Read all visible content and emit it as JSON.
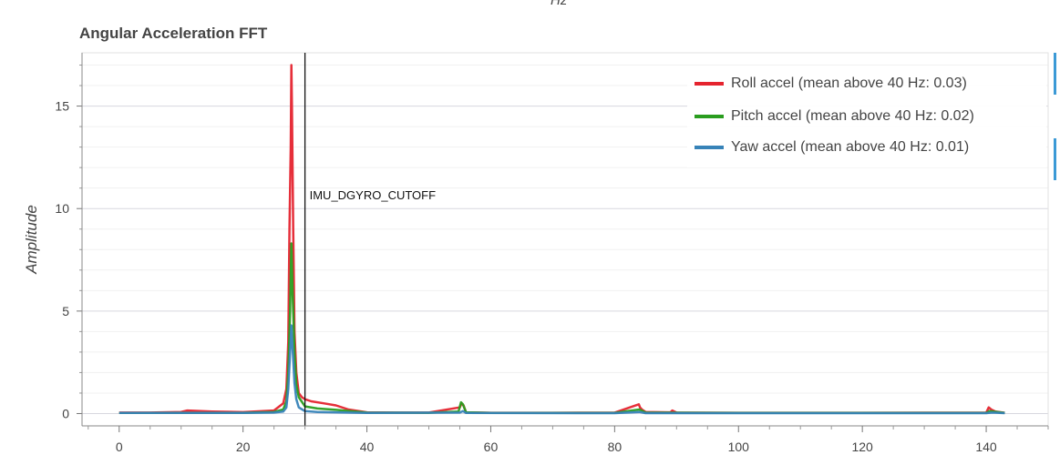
{
  "header": {
    "top_unit": "Hz"
  },
  "chart_data": {
    "type": "line",
    "title": "Angular Acceleration FFT",
    "xlabel": "",
    "ylabel": "Amplitude",
    "xlim": [
      -6,
      150
    ],
    "ylim": [
      -0.6,
      17.6
    ],
    "xticks": [
      0,
      20,
      40,
      60,
      80,
      100,
      120,
      140
    ],
    "yticks": [
      0,
      5,
      10,
      15
    ],
    "grid": true,
    "legend_position": "top-right",
    "annotations": [
      {
        "type": "vline",
        "x": 30,
        "label": "IMU_DGYRO_CUTOFF"
      }
    ],
    "series": [
      {
        "name": "Roll accel (mean above 40 Hz: 0.03)",
        "color": "#e5242f",
        "x": [
          0,
          5,
          10,
          11,
          15,
          20,
          25,
          26.5,
          27,
          27.3,
          27.5,
          27.7,
          27.8,
          27.9,
          28.1,
          28.3,
          28.6,
          29,
          29.5,
          30,
          31,
          33,
          35,
          37,
          40,
          45,
          50,
          55,
          55.3,
          55.6,
          56,
          60,
          70,
          80,
          83.9,
          84.1,
          84.4,
          85,
          89,
          89.3,
          90,
          100,
          120,
          140,
          140.4,
          140.8,
          141.5,
          143
        ],
        "y": [
          0.05,
          0.05,
          0.08,
          0.15,
          0.1,
          0.07,
          0.15,
          0.5,
          1.2,
          3.5,
          9.0,
          13.0,
          17.0,
          15.0,
          9.0,
          4.0,
          2.0,
          1.0,
          0.8,
          0.7,
          0.6,
          0.5,
          0.4,
          0.2,
          0.06,
          0.05,
          0.05,
          0.3,
          0.5,
          0.4,
          0.06,
          0.04,
          0.04,
          0.05,
          0.45,
          0.3,
          0.2,
          0.08,
          0.06,
          0.15,
          0.05,
          0.04,
          0.04,
          0.05,
          0.3,
          0.2,
          0.1,
          0.04
        ]
      },
      {
        "name": "Pitch accel (mean above 40 Hz: 0.02)",
        "color": "#2a9d1f",
        "x": [
          0,
          10,
          20,
          25,
          26.5,
          27,
          27.3,
          27.6,
          27.8,
          28,
          28.3,
          28.6,
          29,
          30,
          32,
          35,
          40,
          50,
          54.8,
          55.2,
          55.5,
          56,
          60,
          80,
          84,
          85,
          100,
          120,
          140,
          140.5,
          143
        ],
        "y": [
          0.03,
          0.04,
          0.04,
          0.08,
          0.2,
          0.6,
          2.0,
          5.0,
          8.3,
          6.0,
          3.0,
          1.4,
          0.8,
          0.35,
          0.25,
          0.18,
          0.05,
          0.04,
          0.1,
          0.55,
          0.45,
          0.06,
          0.03,
          0.03,
          0.2,
          0.05,
          0.03,
          0.03,
          0.03,
          0.12,
          0.03
        ]
      },
      {
        "name": "Yaw accel (mean above 40 Hz: 0.01)",
        "color": "#3783b8",
        "x": [
          0,
          10,
          20,
          25,
          26.5,
          27,
          27.3,
          27.6,
          27.8,
          28,
          28.3,
          28.6,
          29,
          30,
          32,
          35,
          40,
          55,
          55.5,
          56,
          80,
          84,
          85,
          100,
          120,
          140,
          141,
          143
        ],
        "y": [
          0.03,
          0.03,
          0.03,
          0.05,
          0.1,
          0.3,
          1.2,
          3.0,
          4.3,
          3.2,
          1.5,
          0.7,
          0.3,
          0.12,
          0.08,
          0.06,
          0.03,
          0.05,
          0.12,
          0.03,
          0.02,
          0.08,
          0.02,
          0.02,
          0.02,
          0.02,
          0.05,
          0.02
        ]
      }
    ]
  }
}
